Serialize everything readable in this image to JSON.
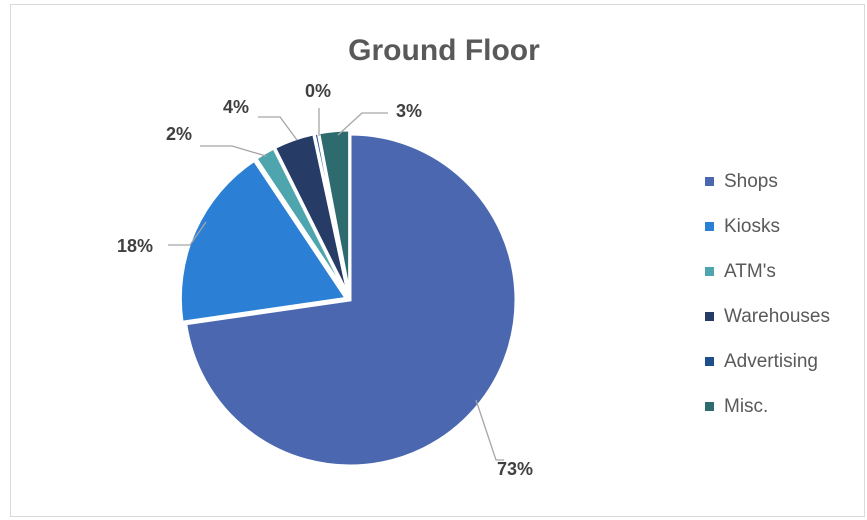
{
  "chart_data": {
    "type": "pie",
    "title": "Ground Floor",
    "categories": [
      "Shops",
      "Kiosks",
      "ATM's",
      "Warehouses",
      "Advertising",
      "Misc."
    ],
    "values": [
      73,
      18,
      2,
      4,
      0.4,
      3
    ],
    "labels": [
      "73%",
      "18%",
      "2%",
      "4%",
      "0%",
      "3%"
    ],
    "colors": [
      "#4a67b0",
      "#2b7fd5",
      "#4fa5ae",
      "#263c66",
      "#1e4f8a",
      "#2e6b6e"
    ],
    "legend_position": "right",
    "start_angle": "top",
    "direction": "clockwise"
  }
}
